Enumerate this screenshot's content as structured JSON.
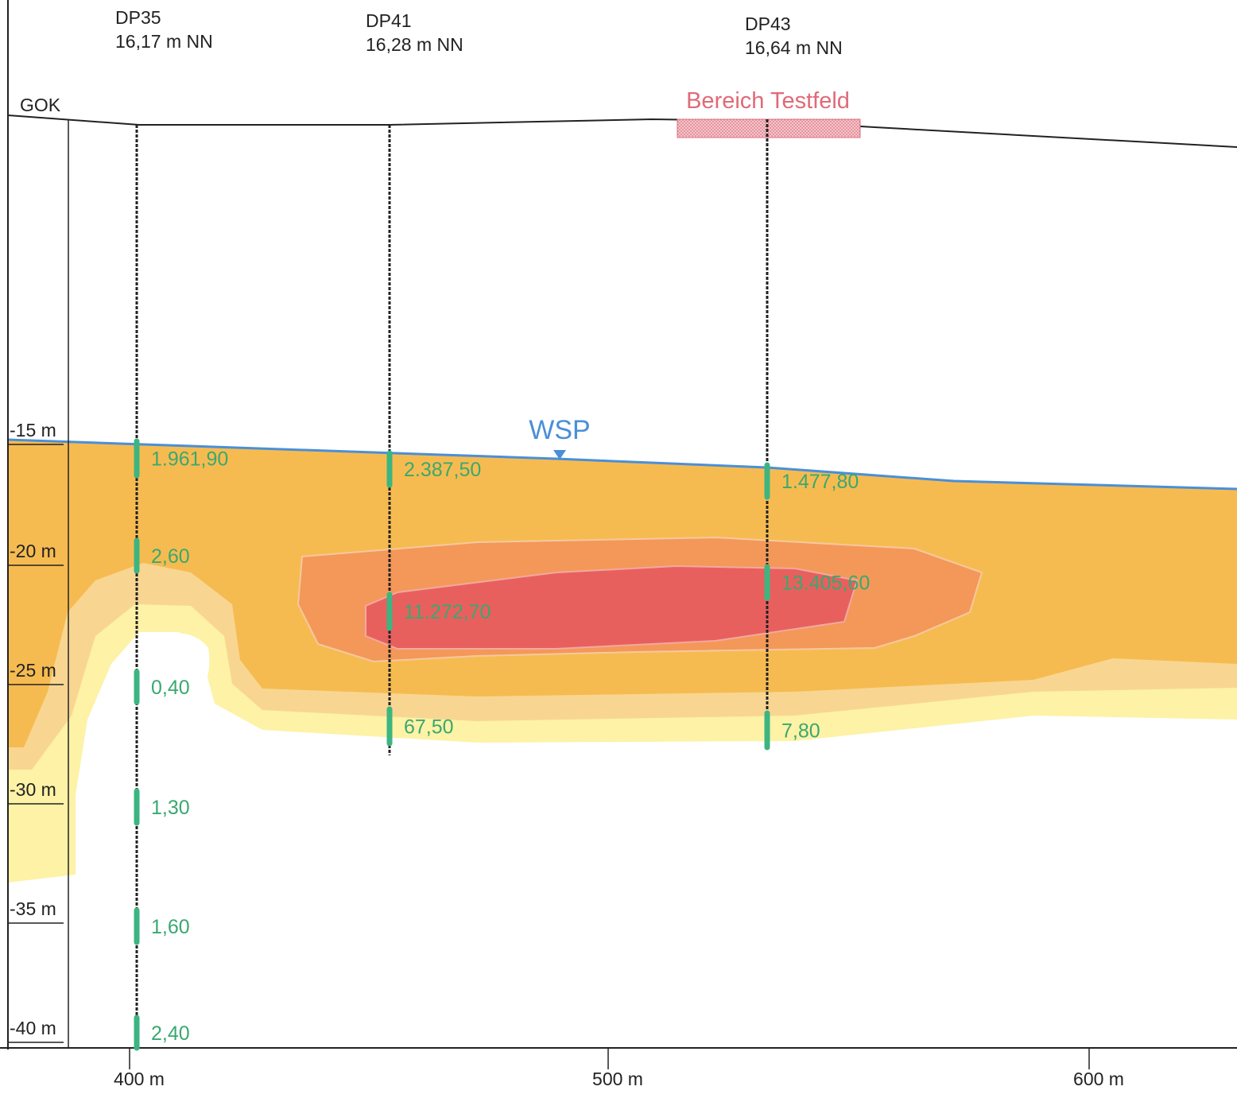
{
  "labels": {
    "gok": "GOK",
    "wsp": "WSP",
    "testfeld": "Bereich Testfeld"
  },
  "depth_axis": {
    "ticks": [
      "-15 m",
      "-20 m",
      "-25 m",
      "-30 m",
      "-35 m",
      "-40 m"
    ]
  },
  "distance_axis": {
    "ticks": [
      "400 m",
      "500 m",
      "600 m"
    ]
  },
  "boreholes": [
    {
      "name": "DP35",
      "elevation": "16,17 m NN",
      "samples": [
        {
          "label": "1.961,90"
        },
        {
          "label": "2,60"
        },
        {
          "label": "0,40"
        },
        {
          "label": "1,30"
        },
        {
          "label": "1,60"
        },
        {
          "label": "2,40"
        }
      ]
    },
    {
      "name": "DP41",
      "elevation": "16,28 m NN",
      "samples": [
        {
          "label": "2.387,50"
        },
        {
          "label": "11.272,70"
        },
        {
          "label": "67,50"
        }
      ]
    },
    {
      "name": "DP43",
      "elevation": "16,64 m NN",
      "samples": [
        {
          "label": "1.477,80"
        },
        {
          "label": "13.405,60"
        },
        {
          "label": "7,80"
        }
      ]
    }
  ]
}
